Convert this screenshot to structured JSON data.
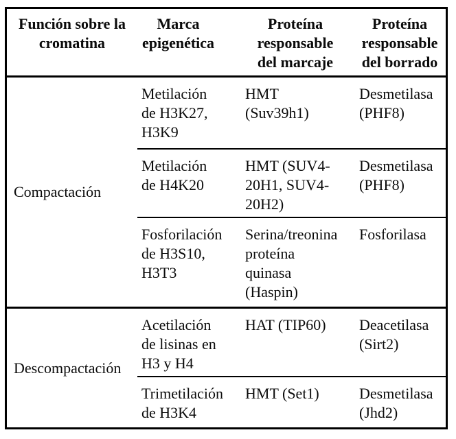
{
  "table": {
    "headers": {
      "funcion": "Función sobre la\ncromatina",
      "marca": "Marca\nepigenética",
      "marcaje": "Proteína\nresponsable\ndel marcaje",
      "borrado": "Proteína\nresponsable\ndel borrado"
    },
    "groups": [
      {
        "function": "Compactación",
        "rows": [
          {
            "marca": "Metilación\nde H3K27,\nH3K9",
            "marcaje": "HMT\n(Suv39h1)",
            "borrado": "Desmetilasa\n(PHF8)"
          },
          {
            "marca": "Metilación\nde H4K20",
            "marcaje": "HMT (SUV4-\n20H1, SUV4-\n20H2)",
            "borrado": "Desmetilasa\n(PHF8)"
          },
          {
            "marca": "Fosforilación\nde H3S10,\nH3T3",
            "marcaje": "Serina/treonina\nproteína\nquinasa\n(Haspin)",
            "borrado": "Fosforilasa"
          }
        ]
      },
      {
        "function": "Descompactación",
        "rows": [
          {
            "marca": "Acetilación\nde lisinas en\nH3 y H4",
            "marcaje": "HAT (TIP60)",
            "borrado": "Deacetilasa\n(Sirt2)"
          },
          {
            "marca": "Trimetilación\nde H3K4",
            "marcaje": "HMT (Set1)",
            "borrado": "Desmetilasa\n(Jhd2)"
          }
        ]
      }
    ]
  },
  "colors": {
    "background": "#ffffff",
    "text": "#0b0b0b",
    "border": "#000000"
  }
}
